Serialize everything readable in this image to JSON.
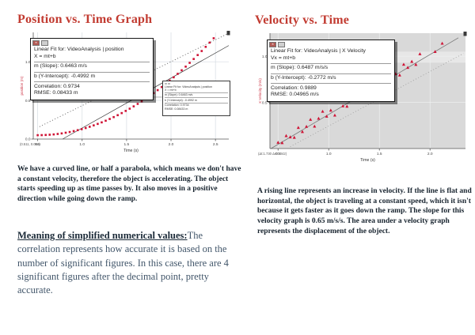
{
  "left_column": {
    "title": "Position vs. Time Graph",
    "para1": "We have a curved line, or half a parabola, which means we don't have a constant velocity, therefore the object is accelerating. The object starts speeding up as time passes by. It also moves in a positive direction while going down the ramp.",
    "heading2": "Meaning of simplified numerical values:",
    "para2": "The correlation represents how accurate it is based on the number of significant figures. In this case, there are 4 significant figures after the decimal point, pretty accurate."
  },
  "right_column": {
    "title": "Velocity vs. Time",
    "para1": "A rising line represents an increase in velocity. If the line is flat and horizontal, the object is traveling at a constant speed, which it isn't because it gets faster as it goes down the ramp. The slope for this velocity graph is 0.65 m/s/s. The area under a velocity graph represents the displacement of the object."
  },
  "colors": {
    "title_red": "#c23b31",
    "marker_red": "#cf1335",
    "axis_label_red": "#cc3344",
    "plot_gray": "#d9d9d9"
  },
  "chart_data": [
    {
      "type": "scatter",
      "title": "Position vs. Time",
      "xlabel": "Time (s)",
      "ylabel": "position (m)",
      "xlim": [
        0.45,
        2.65
      ],
      "ylim": [
        0,
        1.38
      ],
      "xticks": [
        0.5,
        1.0,
        1.5,
        2.0,
        2.5
      ],
      "yticks": [
        0.0,
        0.5,
        1.0
      ],
      "grid": true,
      "grid_color": "#d5dbe1",
      "plot_bg": "#ffffff",
      "corner_label": "(0.511, 0.056)",
      "series": [
        {
          "name": "VideoAnalysis | position",
          "marker": "square",
          "color": "#cf1335",
          "points": [
            [
              0.5,
              0.05
            ],
            [
              0.545,
              0.051
            ],
            [
              0.59,
              0.053
            ],
            [
              0.635,
              0.056
            ],
            [
              0.68,
              0.06
            ],
            [
              0.725,
              0.066
            ],
            [
              0.77,
              0.073
            ],
            [
              0.815,
              0.082
            ],
            [
              0.86,
              0.091
            ],
            [
              0.905,
              0.103
            ],
            [
              0.95,
              0.115
            ],
            [
              0.995,
              0.128
            ],
            [
              1.04,
              0.143
            ],
            [
              1.085,
              0.159
            ],
            [
              1.13,
              0.177
            ],
            [
              1.175,
              0.196
            ],
            [
              1.22,
              0.216
            ],
            [
              1.265,
              0.237
            ],
            [
              1.31,
              0.26
            ],
            [
              1.355,
              0.284
            ],
            [
              1.4,
              0.309
            ],
            [
              1.445,
              0.336
            ],
            [
              1.49,
              0.364
            ],
            [
              1.535,
              0.393
            ],
            [
              1.58,
              0.423
            ],
            [
              1.625,
              0.455
            ],
            [
              1.67,
              0.488
            ],
            [
              1.715,
              0.522
            ],
            [
              1.76,
              0.558
            ],
            [
              1.805,
              0.595
            ],
            [
              1.85,
              0.633
            ],
            [
              1.895,
              0.673
            ],
            [
              1.94,
              0.714
            ],
            [
              1.985,
              0.756
            ],
            [
              2.03,
              0.799
            ],
            [
              2.075,
              0.844
            ],
            [
              2.12,
              0.89
            ],
            [
              2.165,
              0.937
            ],
            [
              2.21,
              0.986
            ],
            [
              2.255,
              1.036
            ],
            [
              2.3,
              1.087
            ],
            [
              2.345,
              1.139
            ],
            [
              2.39,
              1.193
            ],
            [
              2.435,
              1.248
            ],
            [
              2.48,
              1.304
            ]
          ]
        }
      ],
      "lines": [
        {
          "x": [
            0.78,
            2.65
          ],
          "y": [
            0.0,
            1.21
          ],
          "dash": false,
          "color": "#333333",
          "w": 0.7
        },
        {
          "x": [
            0.52,
            2.65
          ],
          "y": [
            0.16,
            1.37
          ],
          "dash": true,
          "color": "#444444",
          "w": 0.8
        }
      ],
      "connectors": [
        {
          "x": [
            1.674,
            1.967
          ],
          "y": [
            0.542,
            0.542
          ]
        }
      ],
      "stats_box": {
        "lines": [
          "Linear Fit for: VideoAnalysis | position",
          "X = mt+b",
          "m (Slope): 0.6463 m/s",
          "b (Y-Intercept): -0.4992 m",
          "Correlation: 0.9734",
          "RMSE: 0.08433 m"
        ]
      }
    },
    {
      "type": "scatter",
      "title": "Velocity vs. Time",
      "xlabel": "Time (s)",
      "ylabel": "X Velocity (m/s)",
      "xlim": [
        0.42,
        2.35
      ],
      "ylim": [
        0,
        1.25
      ],
      "xticks": [
        0.5,
        1.0,
        1.5,
        2.0
      ],
      "yticks": [
        0.5,
        1.0
      ],
      "grid": true,
      "grid_color": "#eef0f0",
      "plot_bg": "#d9d9d9",
      "band": {
        "range": [
          0.93,
          1.05
        ],
        "color": "#e7e7e7"
      },
      "corner_label": "(Δt:1.730 Δv:0.042)",
      "series": [
        {
          "name": "VideoAnalysis | X Velocity",
          "marker": "triangle",
          "color": "#cf1335",
          "points": [
            [
              0.5,
              0.067
            ],
            [
              0.54,
              0.063
            ],
            [
              0.58,
              0.139
            ],
            [
              0.62,
              0.125
            ],
            [
              0.66,
              0.121
            ],
            [
              0.7,
              0.227
            ],
            [
              0.74,
              0.183
            ],
            [
              0.78,
              0.239
            ],
            [
              0.82,
              0.315
            ],
            [
              0.86,
              0.241
            ],
            [
              0.9,
              0.327
            ],
            [
              0.94,
              0.403
            ],
            [
              0.98,
              0.349
            ],
            [
              1.02,
              0.415
            ],
            [
              1.06,
              0.361
            ],
            [
              1.1,
              0.526
            ],
            [
              1.14,
              0.462
            ],
            [
              1.18,
              0.458
            ],
            [
              1.22,
              0.564
            ],
            [
              1.26,
              0.65
            ],
            [
              1.3,
              0.546
            ],
            [
              1.34,
              0.632
            ],
            [
              1.38,
              0.558
            ],
            [
              1.42,
              0.664
            ],
            [
              1.46,
              0.75
            ],
            [
              1.5,
              0.686
            ],
            [
              1.54,
              0.772
            ],
            [
              1.58,
              0.708
            ],
            [
              1.62,
              0.874
            ],
            [
              1.66,
              0.81
            ],
            [
              1.7,
              0.796
            ],
            [
              1.74,
              0.912
            ],
            [
              1.78,
              0.878
            ],
            [
              1.82,
              0.944
            ],
            [
              1.86,
              0.91
            ],
            [
              1.9,
              1.026
            ],
            [
              2.05,
              1.05
            ],
            [
              2.12,
              1.14
            ]
          ]
        }
      ],
      "lines": [
        {
          "x": [
            0.43,
            2.28
          ],
          "y": [
            0.0,
            1.2
          ],
          "dash": false,
          "color": "#787878",
          "w": 0.8
        },
        {
          "x": [
            0.62,
            2.33
          ],
          "y": [
            0.02,
            1.03
          ],
          "dash": true,
          "color": "#9a9a9a",
          "w": 0.8
        }
      ],
      "connectors": [
        {
          "x": [
            1.118,
            1.291
          ],
          "y": [
            0.668,
            0.505
          ]
        }
      ],
      "stats_box": {
        "lines": [
          "Linear Fit for: VideoAnalysis | X Velocity",
          "Vx = mt+b",
          "m (Slope): 0.6487 m/s/s",
          "b (Y-Intercept): -0.2772 m/s",
          "Correlation: 0.9889",
          "RMSE: 0.04965 m/s"
        ]
      }
    }
  ]
}
